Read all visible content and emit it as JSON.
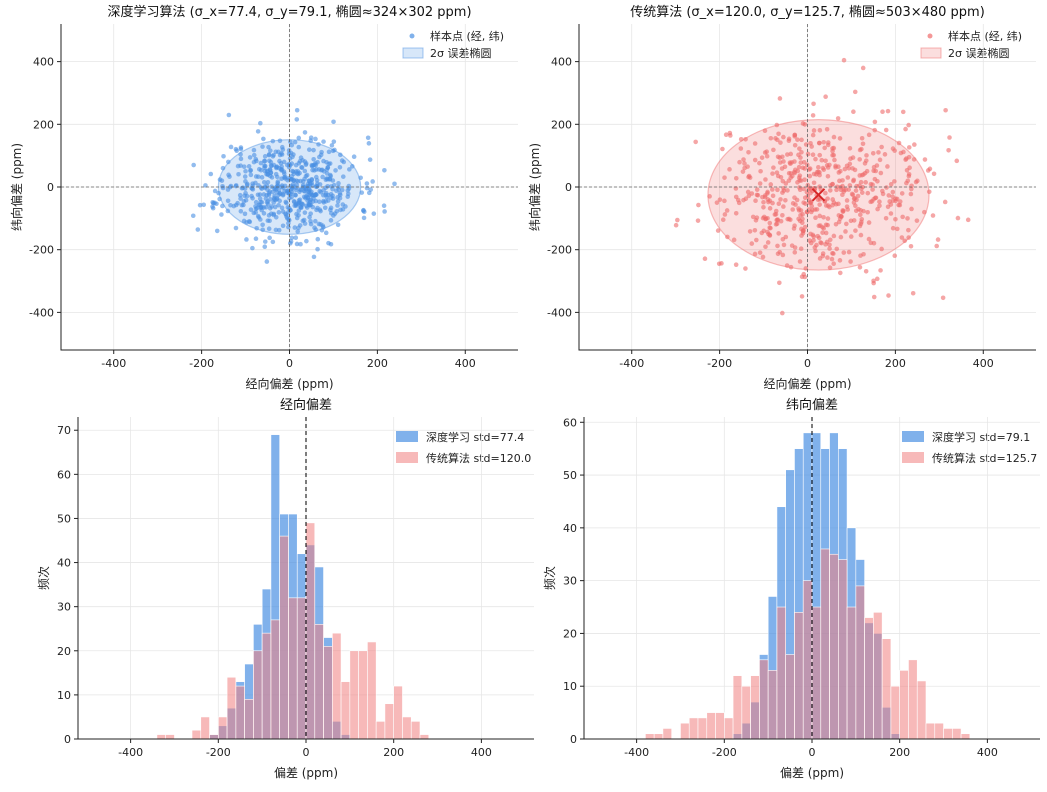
{
  "chart_data": [
    {
      "type": "scatter",
      "title": "深度学习算法 (σ_x=77.4, σ_y=79.1, 椭圆≈324×302 ppm)",
      "xlabel": "经向偏差 (ppm)",
      "ylabel": "纬向偏差 (ppm)",
      "xlim": [
        -520,
        520
      ],
      "ylim": [
        -520,
        520
      ],
      "xticks": [
        -400,
        -200,
        0,
        200,
        400
      ],
      "yticks": [
        -400,
        -200,
        0,
        200,
        400
      ],
      "grid": true,
      "legend": "top-right",
      "color": "#4a90e2",
      "series": [
        {
          "name": "样本点 (经, 纬)",
          "kind": "points",
          "n": 600,
          "sigma_x": 77.4,
          "sigma_y": 79.1,
          "mean": [
            0,
            0
          ],
          "seed": 11
        },
        {
          "name": "2σ 误差椭圆",
          "kind": "ellipse",
          "center": [
            0,
            0
          ],
          "width": 324,
          "height": 302
        }
      ]
    },
    {
      "type": "scatter",
      "title": "传统算法 (σ_x=120.0, σ_y=125.7, 椭圆≈503×480 ppm)",
      "xlabel": "经向偏差 (ppm)",
      "ylabel": "纬向偏差 (ppm)",
      "xlim": [
        -520,
        520
      ],
      "ylim": [
        -520,
        520
      ],
      "xticks": [
        -400,
        -200,
        0,
        200,
        400
      ],
      "yticks": [
        -400,
        -200,
        0,
        200,
        400
      ],
      "grid": true,
      "legend": "top-right",
      "color": "#ef6b6b",
      "series": [
        {
          "name": "样本点 (经, 纬)",
          "kind": "points",
          "n": 600,
          "sigma_x": 120.0,
          "sigma_y": 125.7,
          "mean": [
            25,
            -25
          ],
          "seed": 29
        },
        {
          "name": "2σ 误差椭圆",
          "kind": "ellipse",
          "center": [
            25,
            -25
          ],
          "width": 503,
          "height": 480
        }
      ],
      "center_marker": [
        25,
        -25
      ]
    },
    {
      "type": "bar",
      "title": "经向偏差",
      "xlabel": "偏差 (ppm)",
      "ylabel": "频次",
      "xlim": [
        -520,
        520
      ],
      "ylim": [
        0,
        73
      ],
      "xticks": [
        -400,
        -200,
        0,
        200,
        400
      ],
      "yticks": [
        0,
        10,
        20,
        30,
        40,
        50,
        60,
        70
      ],
      "grid": true,
      "legend": "top-right",
      "bin_start": -420,
      "bin_width": 20,
      "series": [
        {
          "name": "深度学习 std=77.4",
          "color": "#4a90e2",
          "values": [
            0,
            0,
            0,
            0,
            0,
            0,
            0,
            0,
            0,
            0,
            1,
            3,
            7,
            13,
            17,
            26,
            34,
            69,
            51,
            51,
            42,
            44,
            39,
            23,
            4,
            1,
            0,
            0,
            0,
            0,
            0,
            0,
            0,
            0,
            0,
            0,
            0,
            0,
            0,
            0,
            0,
            0
          ]
        },
        {
          "name": "传统算法 std=120.0",
          "color": "#f08080",
          "values": [
            0,
            0,
            0,
            0,
            1,
            1,
            0,
            0,
            2,
            5,
            1,
            5,
            14,
            12,
            9,
            20,
            24,
            27,
            46,
            32,
            32,
            49,
            26,
            21,
            24,
            13,
            20,
            20,
            22,
            4,
            8,
            12,
            5,
            4,
            1,
            0,
            0,
            0,
            0,
            0,
            0,
            0
          ]
        }
      ]
    },
    {
      "type": "bar",
      "title": "纬向偏差",
      "xlabel": "偏差 (ppm)",
      "ylabel": "频次",
      "xlim": [
        -520,
        520
      ],
      "ylim": [
        0,
        61
      ],
      "xticks": [
        -400,
        -200,
        0,
        200,
        400
      ],
      "yticks": [
        0,
        10,
        20,
        30,
        40,
        50,
        60
      ],
      "grid": true,
      "legend": "top-right",
      "bin_start": -420,
      "bin_width": 20,
      "series": [
        {
          "name": "深度学习 std=79.1",
          "color": "#4a90e2",
          "values": [
            0,
            0,
            0,
            0,
            0,
            0,
            0,
            0,
            0,
            0,
            0,
            0,
            1,
            3,
            7,
            16,
            27,
            44,
            51,
            55,
            58,
            58,
            55,
            58,
            55,
            40,
            34,
            22,
            20,
            6,
            1,
            0,
            0,
            0,
            0,
            0,
            0,
            0,
            0,
            0,
            0,
            0
          ]
        },
        {
          "name": "传统算法 std=125.7",
          "color": "#f08080",
          "values": [
            0,
            0,
            1,
            1,
            2,
            0,
            3,
            4,
            4,
            5,
            5,
            4,
            12,
            10,
            12,
            15,
            13,
            25,
            16,
            24,
            30,
            25,
            36,
            35,
            34,
            25,
            29,
            23,
            24,
            19,
            10,
            13,
            15,
            11,
            3,
            3,
            2,
            2,
            1,
            0,
            0,
            0
          ]
        }
      ]
    }
  ]
}
